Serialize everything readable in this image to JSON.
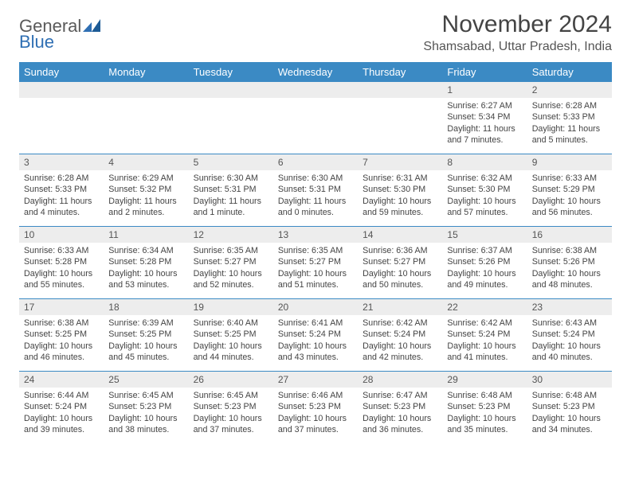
{
  "logo": {
    "general": "General",
    "blue": "Blue"
  },
  "title": "November 2024",
  "location": "Shamsabad, Uttar Pradesh, India",
  "colors": {
    "header_bg": "#3b8ac4",
    "header_text": "#ffffff",
    "daynum_bg": "#ededed",
    "border": "#3b8ac4",
    "logo_blue": "#2f6fb3",
    "logo_gray": "#5a5a5a",
    "body_text": "#444444",
    "background": "#ffffff"
  },
  "day_headers": [
    "Sunday",
    "Monday",
    "Tuesday",
    "Wednesday",
    "Thursday",
    "Friday",
    "Saturday"
  ],
  "weeks": [
    [
      {
        "blank": true
      },
      {
        "blank": true
      },
      {
        "blank": true
      },
      {
        "blank": true
      },
      {
        "blank": true
      },
      {
        "n": "1",
        "sunrise": "Sunrise: 6:27 AM",
        "sunset": "Sunset: 5:34 PM",
        "daylight": "Daylight: 11 hours and 7 minutes."
      },
      {
        "n": "2",
        "sunrise": "Sunrise: 6:28 AM",
        "sunset": "Sunset: 5:33 PM",
        "daylight": "Daylight: 11 hours and 5 minutes."
      }
    ],
    [
      {
        "n": "3",
        "sunrise": "Sunrise: 6:28 AM",
        "sunset": "Sunset: 5:33 PM",
        "daylight": "Daylight: 11 hours and 4 minutes."
      },
      {
        "n": "4",
        "sunrise": "Sunrise: 6:29 AM",
        "sunset": "Sunset: 5:32 PM",
        "daylight": "Daylight: 11 hours and 2 minutes."
      },
      {
        "n": "5",
        "sunrise": "Sunrise: 6:30 AM",
        "sunset": "Sunset: 5:31 PM",
        "daylight": "Daylight: 11 hours and 1 minute."
      },
      {
        "n": "6",
        "sunrise": "Sunrise: 6:30 AM",
        "sunset": "Sunset: 5:31 PM",
        "daylight": "Daylight: 11 hours and 0 minutes."
      },
      {
        "n": "7",
        "sunrise": "Sunrise: 6:31 AM",
        "sunset": "Sunset: 5:30 PM",
        "daylight": "Daylight: 10 hours and 59 minutes."
      },
      {
        "n": "8",
        "sunrise": "Sunrise: 6:32 AM",
        "sunset": "Sunset: 5:30 PM",
        "daylight": "Daylight: 10 hours and 57 minutes."
      },
      {
        "n": "9",
        "sunrise": "Sunrise: 6:33 AM",
        "sunset": "Sunset: 5:29 PM",
        "daylight": "Daylight: 10 hours and 56 minutes."
      }
    ],
    [
      {
        "n": "10",
        "sunrise": "Sunrise: 6:33 AM",
        "sunset": "Sunset: 5:28 PM",
        "daylight": "Daylight: 10 hours and 55 minutes."
      },
      {
        "n": "11",
        "sunrise": "Sunrise: 6:34 AM",
        "sunset": "Sunset: 5:28 PM",
        "daylight": "Daylight: 10 hours and 53 minutes."
      },
      {
        "n": "12",
        "sunrise": "Sunrise: 6:35 AM",
        "sunset": "Sunset: 5:27 PM",
        "daylight": "Daylight: 10 hours and 52 minutes."
      },
      {
        "n": "13",
        "sunrise": "Sunrise: 6:35 AM",
        "sunset": "Sunset: 5:27 PM",
        "daylight": "Daylight: 10 hours and 51 minutes."
      },
      {
        "n": "14",
        "sunrise": "Sunrise: 6:36 AM",
        "sunset": "Sunset: 5:27 PM",
        "daylight": "Daylight: 10 hours and 50 minutes."
      },
      {
        "n": "15",
        "sunrise": "Sunrise: 6:37 AM",
        "sunset": "Sunset: 5:26 PM",
        "daylight": "Daylight: 10 hours and 49 minutes."
      },
      {
        "n": "16",
        "sunrise": "Sunrise: 6:38 AM",
        "sunset": "Sunset: 5:26 PM",
        "daylight": "Daylight: 10 hours and 48 minutes."
      }
    ],
    [
      {
        "n": "17",
        "sunrise": "Sunrise: 6:38 AM",
        "sunset": "Sunset: 5:25 PM",
        "daylight": "Daylight: 10 hours and 46 minutes."
      },
      {
        "n": "18",
        "sunrise": "Sunrise: 6:39 AM",
        "sunset": "Sunset: 5:25 PM",
        "daylight": "Daylight: 10 hours and 45 minutes."
      },
      {
        "n": "19",
        "sunrise": "Sunrise: 6:40 AM",
        "sunset": "Sunset: 5:25 PM",
        "daylight": "Daylight: 10 hours and 44 minutes."
      },
      {
        "n": "20",
        "sunrise": "Sunrise: 6:41 AM",
        "sunset": "Sunset: 5:24 PM",
        "daylight": "Daylight: 10 hours and 43 minutes."
      },
      {
        "n": "21",
        "sunrise": "Sunrise: 6:42 AM",
        "sunset": "Sunset: 5:24 PM",
        "daylight": "Daylight: 10 hours and 42 minutes."
      },
      {
        "n": "22",
        "sunrise": "Sunrise: 6:42 AM",
        "sunset": "Sunset: 5:24 PM",
        "daylight": "Daylight: 10 hours and 41 minutes."
      },
      {
        "n": "23",
        "sunrise": "Sunrise: 6:43 AM",
        "sunset": "Sunset: 5:24 PM",
        "daylight": "Daylight: 10 hours and 40 minutes."
      }
    ],
    [
      {
        "n": "24",
        "sunrise": "Sunrise: 6:44 AM",
        "sunset": "Sunset: 5:24 PM",
        "daylight": "Daylight: 10 hours and 39 minutes."
      },
      {
        "n": "25",
        "sunrise": "Sunrise: 6:45 AM",
        "sunset": "Sunset: 5:23 PM",
        "daylight": "Daylight: 10 hours and 38 minutes."
      },
      {
        "n": "26",
        "sunrise": "Sunrise: 6:45 AM",
        "sunset": "Sunset: 5:23 PM",
        "daylight": "Daylight: 10 hours and 37 minutes."
      },
      {
        "n": "27",
        "sunrise": "Sunrise: 6:46 AM",
        "sunset": "Sunset: 5:23 PM",
        "daylight": "Daylight: 10 hours and 37 minutes."
      },
      {
        "n": "28",
        "sunrise": "Sunrise: 6:47 AM",
        "sunset": "Sunset: 5:23 PM",
        "daylight": "Daylight: 10 hours and 36 minutes."
      },
      {
        "n": "29",
        "sunrise": "Sunrise: 6:48 AM",
        "sunset": "Sunset: 5:23 PM",
        "daylight": "Daylight: 10 hours and 35 minutes."
      },
      {
        "n": "30",
        "sunrise": "Sunrise: 6:48 AM",
        "sunset": "Sunset: 5:23 PM",
        "daylight": "Daylight: 10 hours and 34 minutes."
      }
    ]
  ]
}
